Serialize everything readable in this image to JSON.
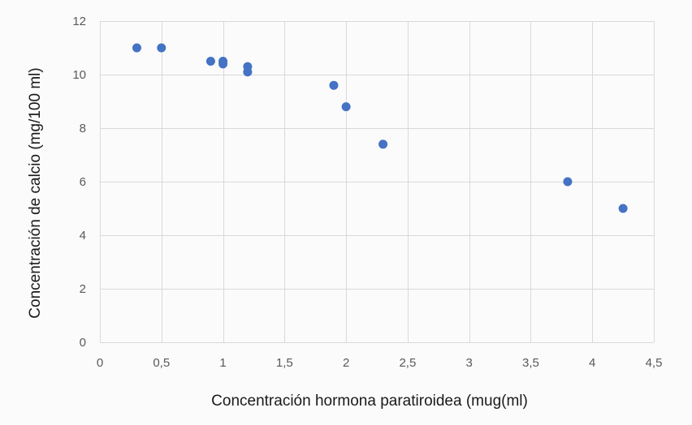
{
  "chart_data": {
    "type": "scatter",
    "title": "",
    "xlabel": "Concentración hormona paratiroidea (mug(ml)",
    "ylabel": "Concentración de calcio (mg/100 ml)",
    "xlim": [
      0,
      4.5
    ],
    "ylim": [
      0,
      12
    ],
    "xticks": [
      {
        "value": 0,
        "label": "0"
      },
      {
        "value": 0.5,
        "label": "0,5"
      },
      {
        "value": 1,
        "label": "1"
      },
      {
        "value": 1.5,
        "label": "1,5"
      },
      {
        "value": 2,
        "label": "2"
      },
      {
        "value": 2.5,
        "label": "2,5"
      },
      {
        "value": 3,
        "label": "3"
      },
      {
        "value": 3.5,
        "label": "3,5"
      },
      {
        "value": 4,
        "label": "4"
      },
      {
        "value": 4.5,
        "label": "4,5"
      }
    ],
    "yticks": [
      {
        "value": 0,
        "label": "0"
      },
      {
        "value": 2,
        "label": "2"
      },
      {
        "value": 4,
        "label": "4"
      },
      {
        "value": 6,
        "label": "6"
      },
      {
        "value": 8,
        "label": "8"
      },
      {
        "value": 10,
        "label": "10"
      },
      {
        "value": 12,
        "label": "12"
      }
    ],
    "grid": "both",
    "legend": "none",
    "marker_color": "#4472c4",
    "grid_color": "#d9d9d9",
    "series": [
      {
        "points": [
          {
            "x": 0.3,
            "y": 11.0
          },
          {
            "x": 0.5,
            "y": 11.0
          },
          {
            "x": 0.9,
            "y": 10.5
          },
          {
            "x": 1.0,
            "y": 10.5
          },
          {
            "x": 1.0,
            "y": 10.4
          },
          {
            "x": 1.2,
            "y": 10.3
          },
          {
            "x": 1.2,
            "y": 10.1
          },
          {
            "x": 1.9,
            "y": 9.6
          },
          {
            "x": 2.0,
            "y": 8.8
          },
          {
            "x": 2.3,
            "y": 7.4
          },
          {
            "x": 3.8,
            "y": 6.0
          },
          {
            "x": 4.25,
            "y": 5.0
          }
        ]
      }
    ]
  }
}
